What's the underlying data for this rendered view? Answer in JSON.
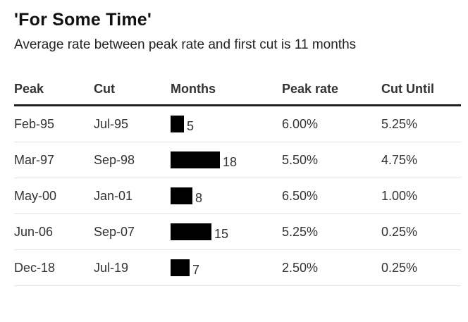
{
  "header": {
    "title": "'For Some Time'",
    "subtitle": "Average rate between peak rate and first cut is 11 months"
  },
  "chart_data": {
    "type": "table",
    "title": "'For Some Time'",
    "subtitle": "Average rate between peak rate and first cut is 11 months",
    "columns": [
      "Peak",
      "Cut",
      "Months",
      "Peak rate",
      "Cut Until"
    ],
    "bar_column": "Months",
    "bar_max": 18,
    "rows": [
      {
        "peak": "Feb-95",
        "cut": "Jul-95",
        "months": 5,
        "peak_rate": "6.00%",
        "cut_until": "5.25%"
      },
      {
        "peak": "Mar-97",
        "cut": "Sep-98",
        "months": 18,
        "peak_rate": "5.50%",
        "cut_until": "4.75%"
      },
      {
        "peak": "May-00",
        "cut": "Jan-01",
        "months": 8,
        "peak_rate": "6.50%",
        "cut_until": "1.00%"
      },
      {
        "peak": "Jun-06",
        "cut": "Sep-07",
        "months": 15,
        "peak_rate": "5.25%",
        "cut_until": "0.25%"
      },
      {
        "peak": "Dec-18",
        "cut": "Jul-19",
        "months": 7,
        "peak_rate": "2.50%",
        "cut_until": "0.25%"
      }
    ],
    "bar_color": "#000000"
  }
}
